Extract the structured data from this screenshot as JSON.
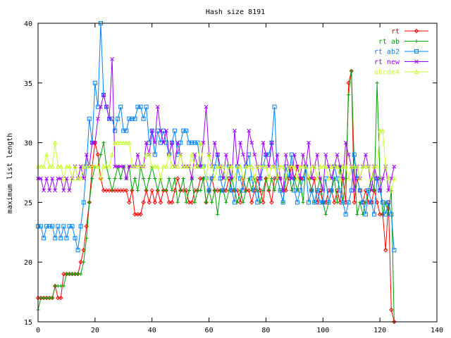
{
  "chart_data": {
    "type": "line",
    "title": "Hash size 8191",
    "xlabel": "",
    "ylabel": "maximum list length",
    "xlim": [
      0,
      140
    ],
    "ylim": [
      15,
      40
    ],
    "xticks": [
      0,
      20,
      40,
      60,
      80,
      100,
      120,
      140
    ],
    "yticks": [
      15,
      20,
      25,
      30,
      35,
      40
    ],
    "grid": false,
    "legend_position": "top-right",
    "series": [
      {
        "name": "rt",
        "color": "#ff0000",
        "marker": "diamond",
        "values": [
          17,
          17,
          17,
          17,
          17,
          17,
          18,
          17,
          17,
          19,
          19,
          19,
          19,
          19,
          19,
          20,
          21,
          23,
          25,
          28,
          30,
          29,
          27,
          26,
          26,
          26,
          26,
          26,
          26,
          26,
          26,
          26,
          25,
          26,
          24,
          24,
          24,
          25,
          26,
          25,
          26,
          25,
          26,
          25,
          26,
          26,
          25,
          25,
          26,
          27,
          26,
          26,
          26,
          25,
          25,
          26,
          26,
          27,
          27,
          25,
          26,
          27,
          26,
          26,
          26,
          26,
          26,
          27,
          26,
          26,
          26,
          25,
          27,
          26,
          26,
          25,
          26,
          27,
          26,
          25,
          27,
          26,
          25,
          27,
          27,
          27,
          26,
          26,
          27,
          28,
          27,
          28,
          27,
          27,
          28,
          27,
          26,
          27,
          25,
          26,
          25,
          25,
          26,
          26,
          25,
          26,
          25,
          27,
          25,
          35,
          36,
          25,
          27,
          26,
          25,
          26,
          25,
          25,
          26,
          25,
          24,
          24,
          21,
          25,
          16,
          15
        ]
      },
      {
        "name": "rt ab",
        "color": "#00a000",
        "marker": "plus",
        "values": [
          16,
          17,
          17,
          17,
          17,
          17,
          18,
          18,
          18,
          18,
          19,
          19,
          19,
          19,
          19,
          19,
          20,
          22,
          25,
          27,
          28,
          28,
          29,
          30,
          28,
          27,
          26,
          27,
          28,
          27,
          28,
          27,
          28,
          26,
          27,
          26,
          28,
          27,
          26,
          27,
          28,
          27,
          26,
          27,
          26,
          26,
          27,
          26,
          27,
          25,
          26,
          27,
          25,
          26,
          27,
          25,
          26,
          26,
          27,
          25,
          26,
          25,
          26,
          24,
          26,
          26,
          25,
          26,
          27,
          26,
          25,
          26,
          25,
          26,
          27,
          26,
          27,
          26,
          25,
          26,
          27,
          26,
          27,
          26,
          27,
          26,
          25,
          27,
          28,
          26,
          27,
          26,
          27,
          25,
          28,
          27,
          26,
          25,
          26,
          27,
          25,
          24,
          25,
          26,
          27,
          25,
          28,
          25,
          27,
          34,
          36,
          28,
          24,
          25,
          24,
          25,
          26,
          27,
          26,
          35,
          27,
          24,
          25,
          24,
          26,
          15
        ]
      },
      {
        "name": "rt ab2",
        "color": "#0080ff",
        "marker": "square",
        "values": [
          23,
          23,
          22,
          23,
          23,
          23,
          22,
          23,
          22,
          23,
          22,
          23,
          23,
          22,
          21,
          23,
          25,
          28,
          32,
          30,
          35,
          33,
          40,
          34,
          33,
          32,
          32,
          31,
          32,
          33,
          31,
          31,
          32,
          32,
          32,
          33,
          33,
          32,
          33,
          30,
          31,
          29,
          31,
          30,
          31,
          30,
          29,
          30,
          31,
          29,
          30,
          31,
          31,
          30,
          30,
          30,
          30,
          28,
          28,
          27,
          26,
          27,
          28,
          29,
          27,
          26,
          27,
          28,
          26,
          25,
          28,
          27,
          26,
          28,
          29,
          27,
          26,
          25,
          27,
          28,
          29,
          29,
          30,
          33,
          27,
          26,
          25,
          28,
          27,
          29,
          26,
          25,
          26,
          27,
          28,
          25,
          26,
          25,
          26,
          25,
          25,
          27,
          25,
          26,
          28,
          27,
          26,
          25,
          24,
          25,
          26,
          29,
          27,
          26,
          25,
          24,
          26,
          25,
          24,
          27,
          26,
          25,
          24,
          25,
          24,
          21
        ]
      },
      {
        "name": "rt new",
        "color": "#a000ff",
        "marker": "x",
        "values": [
          27,
          27,
          26,
          27,
          26,
          27,
          26,
          27,
          27,
          26,
          27,
          26,
          27,
          28,
          27,
          28,
          27,
          29,
          28,
          30,
          30,
          32,
          33,
          34,
          33,
          32,
          37,
          28,
          28,
          28,
          28,
          27,
          28,
          28,
          28,
          29,
          28,
          28,
          30,
          29,
          31,
          30,
          33,
          31,
          30,
          31,
          29,
          30,
          28,
          30,
          29,
          28,
          28,
          28,
          27,
          29,
          28,
          28,
          30,
          33,
          29,
          28,
          30,
          29,
          28,
          27,
          29,
          28,
          27,
          31,
          28,
          30,
          29,
          28,
          31,
          30,
          29,
          28,
          27,
          30,
          29,
          28,
          30,
          28,
          29,
          27,
          26,
          29,
          28,
          27,
          29,
          28,
          27,
          29,
          28,
          30,
          27,
          28,
          29,
          27,
          26,
          29,
          28,
          27,
          28,
          29,
          28,
          27,
          30,
          29,
          28,
          26,
          28,
          27,
          28,
          29,
          28,
          26,
          28,
          27,
          26,
          27,
          28,
          26,
          27,
          28
        ]
      },
      {
        "name": "abcde4",
        "color": "#c8ff32",
        "marker": "triangle",
        "values": [
          28,
          28,
          28,
          29,
          28,
          28,
          30,
          28,
          28,
          27,
          28,
          28,
          27,
          28,
          27,
          27,
          28,
          28,
          28,
          28,
          28,
          28,
          27,
          28,
          28,
          28,
          29,
          30,
          30,
          30,
          30,
          30,
          30,
          28,
          28,
          28,
          28,
          28,
          29,
          29,
          28,
          28,
          28,
          27,
          28,
          28,
          29,
          28,
          28,
          28,
          29,
          28,
          28,
          28,
          29,
          28,
          28,
          30,
          28,
          27,
          29,
          28,
          27,
          28,
          28,
          28,
          27,
          28,
          28,
          27,
          28,
          28,
          27,
          28,
          28,
          28,
          27,
          28,
          28,
          28,
          28,
          27,
          28,
          28,
          27,
          28,
          28,
          27,
          28,
          28,
          28,
          27,
          28,
          28,
          28,
          27,
          28,
          28,
          27,
          28,
          28,
          28,
          27,
          28,
          28,
          28,
          27,
          28,
          28,
          27,
          28,
          28,
          28,
          27,
          28,
          28,
          28,
          27,
          28,
          28,
          31,
          31,
          28,
          27,
          26,
          27
        ]
      }
    ]
  }
}
